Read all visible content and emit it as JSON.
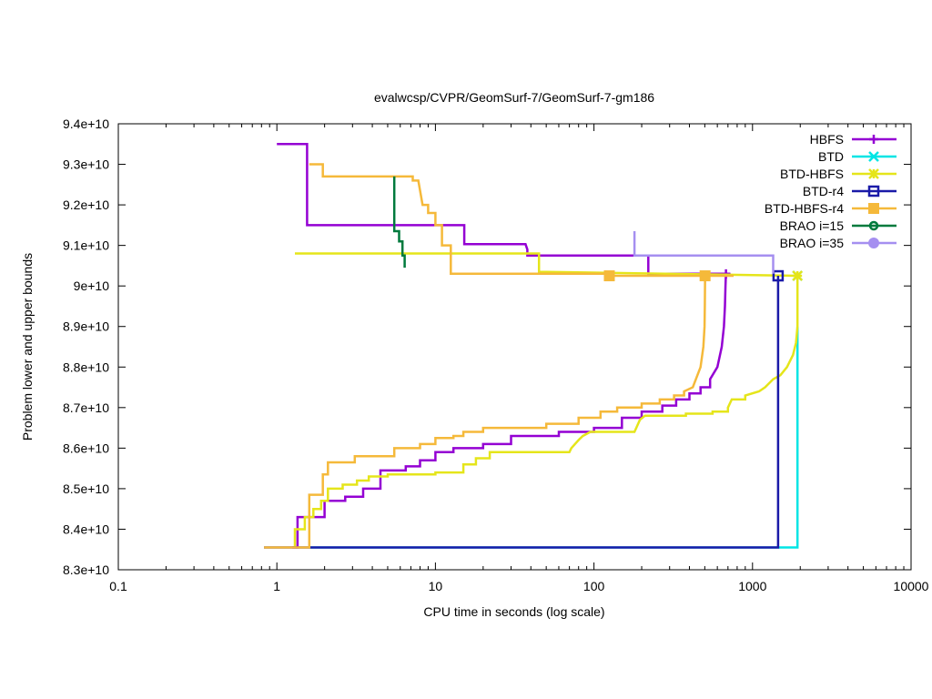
{
  "chart_data": {
    "type": "line",
    "title": "evalwcsp/CVPR/GeomSurf-7/GeomSurf-7-gm186",
    "xlabel": "CPU time in seconds (log scale)",
    "ylabel": "Problem lower and upper bounds",
    "xscale": "log",
    "xlim": [
      0.1,
      10000
    ],
    "ylim": [
      83000000000.0,
      94000000000.0
    ],
    "legend_position": "top-right",
    "x_ticks": [
      {
        "value": 0.1,
        "label": "0.1"
      },
      {
        "value": 1,
        "label": "1"
      },
      {
        "value": 10,
        "label": "10"
      },
      {
        "value": 100,
        "label": "100"
      },
      {
        "value": 1000,
        "label": "1000"
      },
      {
        "value": 10000,
        "label": "10000"
      }
    ],
    "y_ticks": [
      {
        "value": 83000000000.0,
        "label": "8.3e+10"
      },
      {
        "value": 84000000000.0,
        "label": "8.4e+10"
      },
      {
        "value": 85000000000.0,
        "label": "8.5e+10"
      },
      {
        "value": 86000000000.0,
        "label": "8.6e+10"
      },
      {
        "value": 87000000000.0,
        "label": "8.7e+10"
      },
      {
        "value": 88000000000.0,
        "label": "8.8e+10"
      },
      {
        "value": 89000000000.0,
        "label": "8.9e+10"
      },
      {
        "value": 90000000000.0,
        "label": "9e+10"
      },
      {
        "value": 91000000000.0,
        "label": "9.1e+10"
      },
      {
        "value": 92000000000.0,
        "label": "9.2e+10"
      },
      {
        "value": 93000000000.0,
        "label": "9.3e+10"
      },
      {
        "value": 94000000000.0,
        "label": "9.4e+10"
      }
    ],
    "series": [
      {
        "name": "HBFS",
        "color": "#9400d3",
        "marker": "plus",
        "lines": [
          [
            [
              1.0,
              93500000000.0
            ],
            [
              1.55,
              93500000000.0
            ],
            [
              1.55,
              91500000000.0
            ],
            [
              15.2,
              91500000000.0
            ],
            [
              15.2,
              91030000000.0
            ],
            [
              37,
              91030000000.0
            ],
            [
              38,
              90900000000.0
            ],
            [
              38,
              90750000000.0
            ],
            [
              220,
              90750000000.0
            ],
            [
              220,
              90300000000.0
            ],
            [
              720,
              90300000000.0
            ]
          ],
          [
            [
              1.25,
              83550000000.0
            ],
            [
              1.35,
              83550000000.0
            ],
            [
              1.35,
              84300000000.0
            ],
            [
              1.6,
              84300000000.0
            ],
            [
              1.6,
              84300000000.0
            ],
            [
              2.0,
              84300000000.0
            ],
            [
              2.0,
              84700000000.0
            ],
            [
              2.7,
              84700000000.0
            ],
            [
              2.7,
              84800000000.0
            ],
            [
              3.5,
              84800000000.0
            ],
            [
              3.5,
              85000000000.0
            ],
            [
              4.5,
              85000000000.0
            ],
            [
              4.5,
              85450000000.0
            ],
            [
              6.5,
              85450000000.0
            ],
            [
              6.5,
              85550000000.0
            ],
            [
              8,
              85550000000.0
            ],
            [
              8,
              85700000000.0
            ],
            [
              10,
              85700000000.0
            ],
            [
              10,
              85900000000.0
            ],
            [
              13,
              85900000000.0
            ],
            [
              13,
              86000000000.0
            ],
            [
              20,
              86000000000.0
            ],
            [
              20,
              86100000000.0
            ],
            [
              30,
              86100000000.0
            ],
            [
              30,
              86300000000.0
            ],
            [
              60,
              86300000000.0
            ],
            [
              60,
              86400000000.0
            ],
            [
              100,
              86400000000.0
            ],
            [
              100,
              86500000000.0
            ],
            [
              150,
              86500000000.0
            ],
            [
              150,
              86750000000.0
            ],
            [
              200,
              86750000000.0
            ],
            [
              200,
              86900000000.0
            ],
            [
              270,
              86900000000.0
            ],
            [
              270,
              87050000000.0
            ],
            [
              330,
              87050000000.0
            ],
            [
              330,
              87200000000.0
            ],
            [
              400,
              87200000000.0
            ],
            [
              400,
              87350000000.0
            ],
            [
              470,
              87350000000.0
            ],
            [
              470,
              87500000000.0
            ],
            [
              540,
              87500000000.0
            ],
            [
              540,
              87700000000.0
            ],
            [
              600,
              88000000000.0
            ],
            [
              640,
              88500000000.0
            ],
            [
              660,
              89000000000.0
            ],
            [
              670,
              89500000000.0
            ],
            [
              675,
              90000000000.0
            ],
            [
              680,
              90300000000.0
            ]
          ]
        ],
        "markers": [
          [
            680,
            90300000000.0
          ]
        ]
      },
      {
        "name": "BTD",
        "color": "#00e5e5",
        "marker": "cross",
        "lines": [
          [
            [
              1.6,
              83550000000.0
            ],
            [
              1920,
              83550000000.0
            ],
            [
              1920,
              89000000000.0
            ]
          ]
        ],
        "markers": [
          [
            1920,
            90250000000.0
          ]
        ]
      },
      {
        "name": "BTD-HBFS",
        "color": "#e5e51a",
        "marker": "star",
        "lines": [
          [
            [
              1.3,
              90800000000.0
            ],
            [
              45,
              90800000000.0
            ],
            [
              45,
              90350000000.0
            ],
            [
              1920,
              90250000000.0
            ]
          ],
          [
            [
              1.3,
              83550000000.0
            ],
            [
              1.3,
              84000000000.0
            ],
            [
              1.5,
              84000000000.0
            ],
            [
              1.5,
              84300000000.0
            ],
            [
              1.7,
              84300000000.0
            ],
            [
              1.7,
              84500000000.0
            ],
            [
              1.9,
              84500000000.0
            ],
            [
              1.9,
              84700000000.0
            ],
            [
              2.1,
              84700000000.0
            ],
            [
              2.1,
              85000000000.0
            ],
            [
              2.6,
              85000000000.0
            ],
            [
              2.6,
              85100000000.0
            ],
            [
              3.2,
              85100000000.0
            ],
            [
              3.2,
              85200000000.0
            ],
            [
              3.8,
              85200000000.0
            ],
            [
              3.8,
              85300000000.0
            ],
            [
              5,
              85300000000.0
            ],
            [
              5,
              85350000000.0
            ],
            [
              10,
              85350000000.0
            ],
            [
              10,
              85400000000.0
            ],
            [
              15,
              85400000000.0
            ],
            [
              15,
              85600000000.0
            ],
            [
              18,
              85600000000.0
            ],
            [
              18,
              85750000000.0
            ],
            [
              22,
              85750000000.0
            ],
            [
              22,
              85900000000.0
            ],
            [
              70,
              85900000000.0
            ],
            [
              72,
              86000000000.0
            ],
            [
              80,
              86200000000.0
            ],
            [
              85,
              86300000000.0
            ],
            [
              95,
              86400000000.0
            ],
            [
              180,
              86400000000.0
            ],
            [
              185,
              86500000000.0
            ],
            [
              195,
              86700000000.0
            ],
            [
              210,
              86800000000.0
            ],
            [
              380,
              86800000000.0
            ],
            [
              380,
              86850000000.0
            ],
            [
              560,
              86850000000.0
            ],
            [
              560,
              86900000000.0
            ],
            [
              700,
              86900000000.0
            ],
            [
              700,
              87000000000.0
            ],
            [
              740,
              87200000000.0
            ],
            [
              900,
              87200000000.0
            ],
            [
              900,
              87300000000.0
            ],
            [
              1100,
              87400000000.0
            ],
            [
              1200,
              87500000000.0
            ],
            [
              1350,
              87700000000.0
            ],
            [
              1500,
              87800000000.0
            ],
            [
              1650,
              88000000000.0
            ],
            [
              1800,
              88300000000.0
            ],
            [
              1880,
              88600000000.0
            ],
            [
              1920,
              89000000000.0
            ],
            [
              1920,
              90250000000.0
            ]
          ]
        ],
        "markers": [
          [
            1920,
            90250000000.0
          ]
        ]
      },
      {
        "name": "BTD-r4",
        "color": "#1a1aa8",
        "marker": "square",
        "lines": [
          [
            [
              0.83,
              83550000000.0
            ],
            [
              1450,
              83550000000.0
            ],
            [
              1450,
              90250000000.0
            ]
          ]
        ],
        "markers": [
          [
            1450,
            90250000000.0
          ]
        ]
      },
      {
        "name": "BTD-HBFS-r4",
        "color": "#f5b93a",
        "marker": "filled-square",
        "lines": [
          [
            [
              1.6,
              93000000000.0
            ],
            [
              1.95,
              93000000000.0
            ],
            [
              1.95,
              92700000000.0
            ],
            [
              7.2,
              92700000000.0
            ],
            [
              7.2,
              92600000000.0
            ],
            [
              7.8,
              92600000000.0
            ],
            [
              8.3,
              92000000000.0
            ],
            [
              9,
              92000000000.0
            ],
            [
              9,
              91800000000.0
            ],
            [
              10,
              91800000000.0
            ],
            [
              10,
              91500000000.0
            ],
            [
              11,
              91500000000.0
            ],
            [
              11,
              91000000000.0
            ],
            [
              12.5,
              91000000000.0
            ],
            [
              12.5,
              90300000000.0
            ],
            [
              120,
              90300000000.0
            ],
            [
              120,
              90250000000.0
            ],
            [
              760,
              90250000000.0
            ]
          ],
          [
            [
              0.83,
              83550000000.0
            ],
            [
              1.6,
              83550000000.0
            ],
            [
              1.6,
              84850000000.0
            ],
            [
              1.95,
              84850000000.0
            ],
            [
              1.95,
              85350000000.0
            ],
            [
              2.1,
              85350000000.0
            ],
            [
              2.1,
              85650000000.0
            ],
            [
              3.1,
              85650000000.0
            ],
            [
              3.1,
              85800000000.0
            ],
            [
              5.5,
              85800000000.0
            ],
            [
              5.5,
              86000000000.0
            ],
            [
              8,
              86000000000.0
            ],
            [
              8,
              86100000000.0
            ],
            [
              10,
              86100000000.0
            ],
            [
              10,
              86250000000.0
            ],
            [
              13,
              86250000000.0
            ],
            [
              13,
              86300000000.0
            ],
            [
              15,
              86300000000.0
            ],
            [
              15,
              86400000000.0
            ],
            [
              20,
              86400000000.0
            ],
            [
              20,
              86500000000.0
            ],
            [
              50,
              86500000000.0
            ],
            [
              50,
              86600000000.0
            ],
            [
              80,
              86600000000.0
            ],
            [
              80,
              86750000000.0
            ],
            [
              110,
              86750000000.0
            ],
            [
              110,
              86900000000.0
            ],
            [
              140,
              86900000000.0
            ],
            [
              140,
              87000000000.0
            ],
            [
              200,
              87000000000.0
            ],
            [
              200,
              87100000000.0
            ],
            [
              260,
              87100000000.0
            ],
            [
              260,
              87200000000.0
            ],
            [
              320,
              87200000000.0
            ],
            [
              320,
              87300000000.0
            ],
            [
              370,
              87300000000.0
            ],
            [
              370,
              87400000000.0
            ],
            [
              420,
              87500000000.0
            ],
            [
              470,
              88000000000.0
            ],
            [
              490,
              88500000000.0
            ],
            [
              498,
              89000000000.0
            ],
            [
              500,
              89500000000.0
            ],
            [
              502,
              90250000000.0
            ]
          ]
        ],
        "markers": [
          [
            125,
            90250000000.0
          ],
          [
            502,
            90250000000.0
          ]
        ]
      },
      {
        "name": "BRAO i=15",
        "color": "#007a3d",
        "marker": "open-circle",
        "lines": [
          [
            [
              5.5,
              92700000000.0
            ],
            [
              5.5,
              91350000000.0
            ],
            [
              5.9,
              91350000000.0
            ],
            [
              5.9,
              91100000000.0
            ],
            [
              6.2,
              91100000000.0
            ],
            [
              6.2,
              90750000000.0
            ],
            [
              6.4,
              90750000000.0
            ],
            [
              6.4,
              90450000000.0
            ]
          ]
        ],
        "markers": []
      },
      {
        "name": "BRAO i=35",
        "color": "#a58ff0",
        "marker": "filled-circle",
        "lines": [
          [
            [
              180,
              91350000000.0
            ],
            [
              180,
              90750000000.0
            ],
            [
              1350,
              90750000000.0
            ],
            [
              1350,
              90300000000.0
            ]
          ]
        ],
        "markers": []
      }
    ]
  }
}
